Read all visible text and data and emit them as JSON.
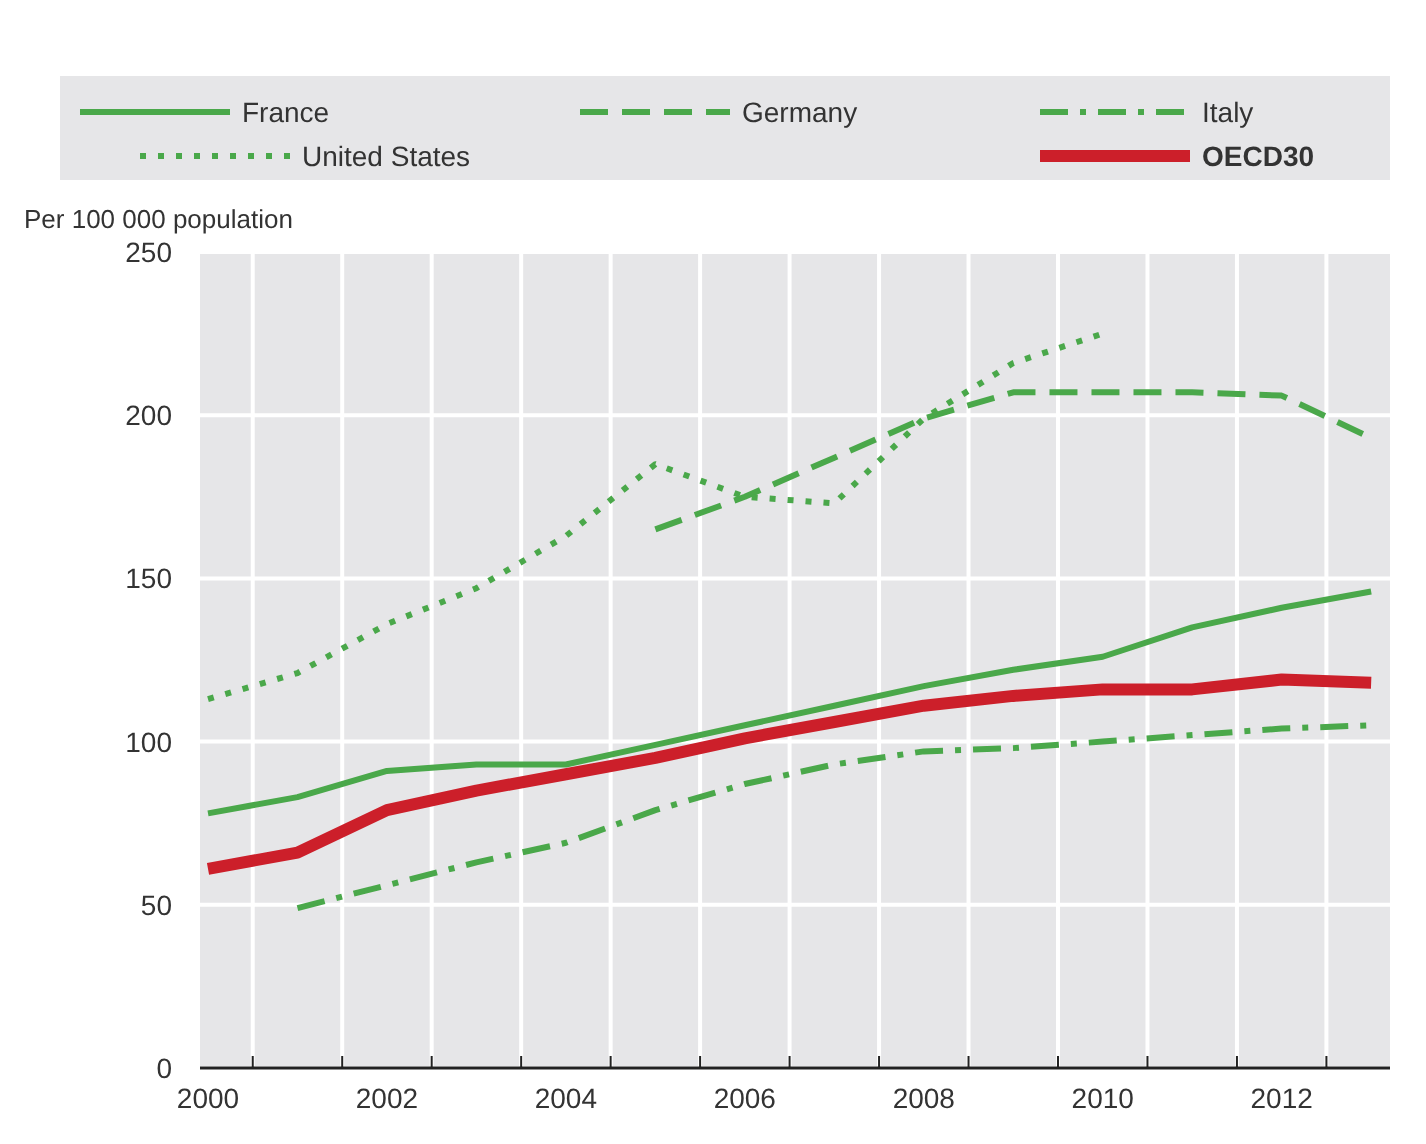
{
  "chart_data": {
    "type": "line",
    "ylabel": "Per 100 000 population",
    "categories": [
      "2000",
      null,
      "2002",
      null,
      "2004",
      null,
      "2006",
      null,
      "2008",
      null,
      "2010",
      null,
      "2012",
      null
    ],
    "series": [
      {
        "name": "France",
        "color": "#4aa84a",
        "line_style": "solid",
        "values": [
          78,
          83,
          91,
          93,
          93,
          99,
          105,
          111,
          117,
          122,
          126,
          135,
          141,
          146
        ]
      },
      {
        "name": "Germany",
        "color": "#4aa84a",
        "line_style": "dashed",
        "values": [
          null,
          null,
          null,
          null,
          null,
          165,
          175,
          187,
          199,
          207,
          207,
          207,
          206,
          193
        ]
      },
      {
        "name": "Italy",
        "color": "#4aa84a",
        "line_style": "dashdot",
        "values": [
          null,
          49,
          56,
          63,
          69,
          79,
          87,
          93,
          97,
          98,
          100,
          102,
          104,
          105
        ]
      },
      {
        "name": "United States",
        "color": "#4aa84a",
        "line_style": "dotted",
        "values": [
          113,
          121,
          136,
          147,
          163,
          185,
          175,
          173,
          199,
          216,
          225,
          null,
          null,
          null
        ]
      },
      {
        "name": "OECD30",
        "color": "#cc1f2a",
        "line_style": "solid",
        "values": [
          61,
          66,
          79,
          85,
          90,
          95,
          101,
          106,
          111,
          114,
          116,
          116,
          119,
          118
        ]
      }
    ],
    "ylim": [
      0,
      250
    ],
    "yticks": [
      0,
      50,
      100,
      150,
      200,
      250
    ],
    "grid": true,
    "legend": "top"
  }
}
